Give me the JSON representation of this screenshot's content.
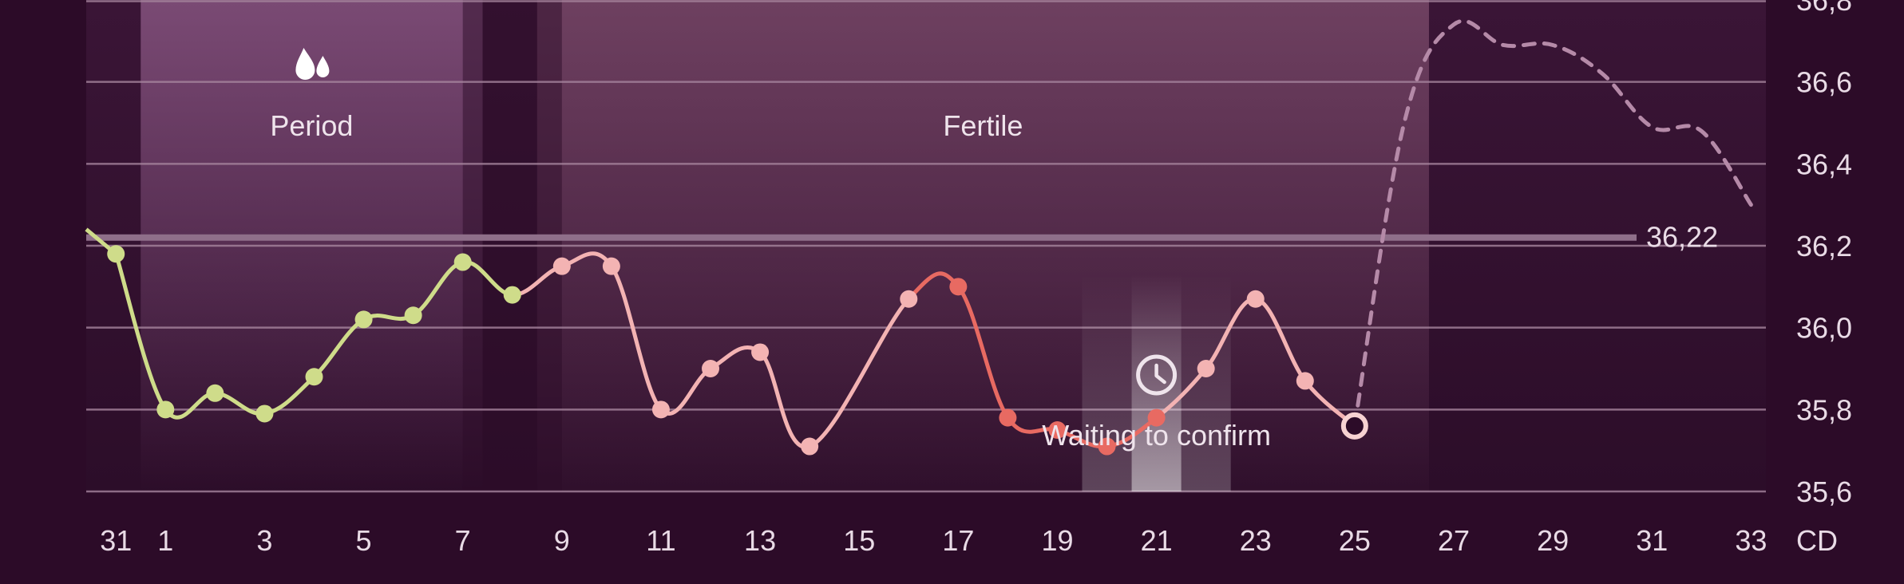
{
  "chart_data": {
    "type": "line",
    "x_unit_label": "CD",
    "x_ticks": [
      "31",
      "1",
      "3",
      "5",
      "7",
      "9",
      "11",
      "13",
      "15",
      "17",
      "19",
      "21",
      "23",
      "25",
      "27",
      "29",
      "31",
      "33"
    ],
    "y_ticks": [
      "35,6",
      "35,8",
      "36,0",
      "36,2",
      "36,4",
      "36,6",
      "36,8"
    ],
    "ylim": [
      35.6,
      36.8
    ],
    "xlim": [
      -1.6,
      32.3
    ],
    "grid": true,
    "bands": [
      {
        "label": "Period",
        "icon": "drops-icon",
        "from": 0.0,
        "to": 5.9,
        "color": "#7a4a74"
      },
      {
        "label": "Fertile",
        "from": 8.0,
        "to": 25.0,
        "color": "#6e4060"
      }
    ],
    "reference_line": {
      "value": 36.22,
      "label": "36,22"
    },
    "annotation": {
      "label": "Waiting to confirm",
      "icon": "clock-icon",
      "day": 20.0
    },
    "series": [
      {
        "color": "#cfdc8a",
        "points": [
          [
            -1.0,
            36.18
          ],
          [
            0.0,
            35.8
          ],
          [
            1.0,
            35.84
          ],
          [
            2.0,
            35.79
          ],
          [
            3.0,
            35.88
          ],
          [
            4.0,
            36.02
          ],
          [
            5.0,
            36.03
          ],
          [
            6.0,
            36.16
          ],
          [
            7.0,
            36.08
          ]
        ]
      },
      {
        "color": "#f3b3b3",
        "points": [
          [
            8.0,
            36.15
          ],
          [
            9.0,
            36.15
          ],
          [
            10.0,
            35.8
          ],
          [
            11.0,
            35.9
          ],
          [
            12.0,
            35.94
          ],
          [
            13.0,
            35.71
          ],
          [
            15.0,
            36.07
          ]
        ]
      },
      {
        "color": "#e86a62",
        "points": [
          [
            16.0,
            36.1
          ],
          [
            17.0,
            35.78
          ],
          [
            18.0,
            35.75
          ],
          [
            19.0,
            35.71
          ],
          [
            20.0,
            35.78
          ]
        ]
      },
      {
        "color": "#f3b3b3",
        "points": [
          [
            21.0,
            35.9
          ],
          [
            22.0,
            36.07
          ],
          [
            23.0,
            35.87
          ],
          [
            24.0,
            35.76
          ]
        ]
      }
    ],
    "forecast": {
      "color": "#b58aa8",
      "points": [
        [
          24.0,
          35.76
        ],
        [
          25.0,
          36.5
        ],
        [
          26.0,
          36.74
        ],
        [
          27.0,
          36.69
        ],
        [
          28.0,
          36.69
        ],
        [
          29.0,
          36.62
        ],
        [
          30.0,
          36.49
        ],
        [
          31.0,
          36.48
        ],
        [
          32.0,
          36.3
        ]
      ]
    }
  }
}
